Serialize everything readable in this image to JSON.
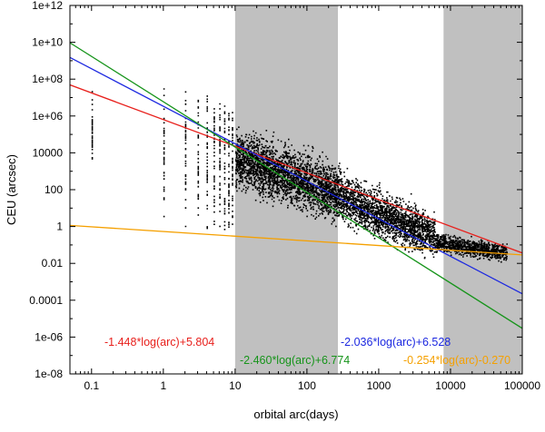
{
  "chart_data": {
    "type": "scatter",
    "title": "",
    "xlabel": "orbital arc(days)",
    "ylabel": "CEU (arcsec)",
    "xscale": "log",
    "yscale": "log",
    "xlim": [
      0.05,
      100000
    ],
    "ylim": [
      1e-08,
      1000000000000.0
    ],
    "xticks": [
      {
        "value": 0.1,
        "label": "0.1"
      },
      {
        "value": 1,
        "label": "1"
      },
      {
        "value": 10,
        "label": "10"
      },
      {
        "value": 100,
        "label": "100"
      },
      {
        "value": 1000,
        "label": "1000"
      },
      {
        "value": 10000,
        "label": "10000"
      },
      {
        "value": 100000,
        "label": "100000"
      }
    ],
    "yticks": [
      {
        "value": 1000000000000.0,
        "label": "1e+12"
      },
      {
        "value": 10000000000.0,
        "label": "1e+10"
      },
      {
        "value": 100000000.0,
        "label": "1e+08"
      },
      {
        "value": 1000000.0,
        "label": "1e+06"
      },
      {
        "value": 10000,
        "label": "10000"
      },
      {
        "value": 100,
        "label": "100"
      },
      {
        "value": 1,
        "label": "1"
      },
      {
        "value": 0.01,
        "label": "0.01"
      },
      {
        "value": 0.0001,
        "label": "0.0001"
      },
      {
        "value": 1e-06,
        "label": "1e-06"
      },
      {
        "value": 1e-08,
        "label": "1e-08"
      }
    ],
    "shaded_bands": [
      {
        "x_start": 10,
        "x_end": 270,
        "color": "#c0c0c0"
      },
      {
        "x_start": 8000,
        "x_end": 100000,
        "color": "#c0c0c0"
      }
    ],
    "fit_lines": [
      {
        "name": "red-fit",
        "label": "-1.448*log(arc)+5.804",
        "slope": -1.448,
        "intercept": 5.804,
        "color": "#e8201c"
      },
      {
        "name": "blue-fit",
        "label": "-2.036*log(arc)+6.528",
        "slope": -2.036,
        "intercept": 6.528,
        "color": "#1c28e0"
      },
      {
        "name": "green-fit",
        "label": "-2.460*log(arc)+6.774",
        "slope": -2.46,
        "intercept": 6.774,
        "color": "#16941a"
      },
      {
        "name": "orange-fit",
        "label": "-0.254*log(arc)-0.270",
        "slope": -0.254,
        "intercept": -0.27,
        "color": "#f5a000"
      }
    ],
    "scatter_columns": [
      {
        "x": 0.1,
        "ymin": 1000.0,
        "ymax": 30000000.0,
        "dense_min": 10000.0,
        "dense_max": 1000000.0
      },
      {
        "x": 1,
        "ymin": 3,
        "ymax": 70000000.0,
        "dense_min": 30,
        "dense_max": 5000000.0
      },
      {
        "x": 2,
        "ymin": 1,
        "ymax": 100000000.0,
        "dense_min": 10,
        "dense_max": 5000000.0
      },
      {
        "x": 3,
        "ymin": 1,
        "ymax": 10000000.0,
        "dense_min": 10,
        "dense_max": 5000000.0
      },
      {
        "x": 4,
        "ymin": 0.5,
        "ymax": 20000000.0,
        "dense_min": 10,
        "dense_max": 5000000.0
      },
      {
        "x": 5,
        "ymin": 0.5,
        "ymax": 10000000.0,
        "dense_min": 10,
        "dense_max": 3000000.0
      },
      {
        "x": 6,
        "ymin": 0.5,
        "ymax": 8000000.0,
        "dense_min": 10,
        "dense_max": 3000000.0
      },
      {
        "x": 7,
        "ymin": 0.5,
        "ymax": 5000000.0,
        "dense_min": 5,
        "dense_max": 2000000.0
      },
      {
        "x": 8,
        "ymin": 0.5,
        "ymax": 4000000.0,
        "dense_min": 5,
        "dense_max": 2000000.0
      },
      {
        "x": 9,
        "ymin": 0.5,
        "ymax": 3000000.0,
        "dense_min": 5,
        "dense_max": 1000000.0
      }
    ],
    "scatter_clouds": [
      {
        "x_min": 10,
        "x_max": 300,
        "y_center_at_xmin": 5000,
        "y_center_at_xmax": 60,
        "spread_decades": 1.6,
        "count": 2600
      },
      {
        "x_min": 300,
        "x_max": 6000,
        "y_center_at_xmin": 40,
        "y_center_at_xmax": 0.3,
        "spread_decades": 1.3,
        "count": 2000
      },
      {
        "x_min": 6000,
        "x_max": 60000,
        "y_center_at_xmin": 0.15,
        "y_center_at_xmax": 0.04,
        "spread_decades": 0.5,
        "count": 900
      }
    ]
  }
}
